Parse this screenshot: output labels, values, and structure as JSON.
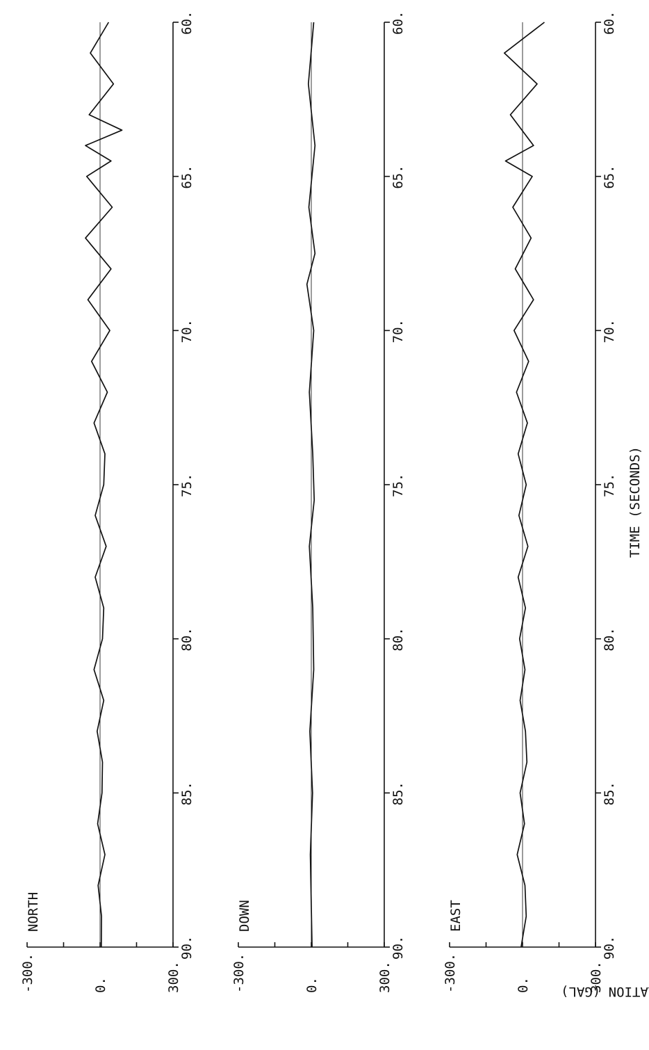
{
  "chart_data": {
    "type": "line",
    "orientation": "rotated 90 degrees clockwise (time runs top-to-bottom)",
    "xlabel": "TIME (SECONDS)",
    "ylabel": "ACCELERATION (GAL)",
    "xlim": [
      60,
      90
    ],
    "ylim": [
      -300,
      300
    ],
    "x_ticks": [
      "60.",
      "65.",
      "70.",
      "75.",
      "80.",
      "85.",
      "90."
    ],
    "y_ticks": [
      "300.",
      "0.",
      "-300."
    ],
    "grid": false,
    "legend": "none",
    "line_color": "#111111",
    "panels": [
      {
        "label": "NORTH",
        "series": [
          {
            "x": [
              60,
              61,
              62,
              63,
              63.5,
              64,
              64.5,
              65,
              66,
              67,
              68,
              69,
              70,
              71,
              72,
              73,
              74,
              75,
              76,
              77,
              78,
              79,
              80,
              81,
              82,
              83,
              84,
              85,
              86,
              87,
              88,
              89,
              90
            ],
            "y": [
              35,
              -40,
              55,
              -45,
              90,
              -60,
              45,
              -55,
              50,
              -60,
              45,
              -50,
              40,
              -35,
              30,
              -25,
              20,
              15,
              -20,
              25,
              -20,
              15,
              10,
              -25,
              15,
              -12,
              10,
              8,
              -10,
              20,
              -8,
              6,
              5
            ]
          }
        ]
      },
      {
        "label": "DOWN",
        "series": [
          {
            "x": [
              60,
              62,
              64,
              66,
              67.5,
              68.5,
              70,
              72,
              74,
              75.5,
              77,
              79,
              81,
              83,
              85,
              87,
              90
            ],
            "y": [
              10,
              -12,
              15,
              -10,
              15,
              -18,
              10,
              -8,
              6,
              12,
              -8,
              6,
              10,
              -6,
              5,
              -4,
              3
            ]
          }
        ]
      },
      {
        "label": "EAST",
        "series": [
          {
            "x": [
              60,
              61,
              62,
              63,
              64,
              64.5,
              65,
              66,
              67,
              68,
              69,
              70,
              71,
              72,
              73,
              74,
              75,
              76,
              77,
              78,
              79,
              80,
              81,
              82,
              83,
              84,
              85,
              86,
              87,
              88,
              89,
              90
            ],
            "y": [
              90,
              -75,
              60,
              -50,
              45,
              -70,
              40,
              -40,
              35,
              -30,
              45,
              -35,
              25,
              -25,
              20,
              -18,
              15,
              -15,
              22,
              -18,
              12,
              -12,
              10,
              -10,
              12,
              18,
              -10,
              8,
              -22,
              10,
              15,
              -6
            ]
          }
        ]
      }
    ]
  }
}
